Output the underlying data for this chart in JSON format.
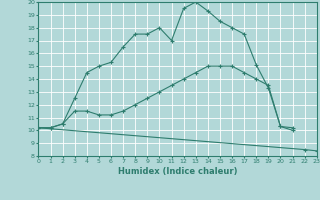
{
  "line1_x": [
    0,
    1,
    2,
    3,
    4,
    5,
    6,
    7,
    8,
    9,
    10,
    11,
    12,
    13,
    14,
    15,
    16,
    17,
    18,
    19,
    20,
    21
  ],
  "line1_y": [
    10.2,
    10.2,
    10.5,
    12.5,
    14.5,
    15.0,
    15.3,
    16.5,
    17.5,
    17.5,
    18.0,
    17.0,
    19.5,
    20.0,
    19.3,
    18.5,
    18.0,
    17.5,
    15.1,
    13.3,
    10.3,
    10.2
  ],
  "line2_x": [
    0,
    1,
    2,
    3,
    4,
    5,
    6,
    7,
    8,
    9,
    10,
    11,
    12,
    13,
    14,
    15,
    16,
    17,
    18,
    19,
    20,
    21,
    22
  ],
  "line2_y": [
    10.2,
    10.2,
    10.5,
    11.5,
    11.5,
    11.2,
    11.2,
    11.5,
    12.0,
    12.5,
    13.0,
    13.5,
    14.0,
    14.5,
    15.0,
    15.0,
    15.0,
    14.5,
    14.0,
    13.5,
    10.3,
    10.0,
    null
  ],
  "line3_x": [
    0,
    22,
    23
  ],
  "line3_y": [
    10.2,
    8.5,
    8.4
  ],
  "line_color": "#2e7d6e",
  "bg_color": "#b2d8d8",
  "grid_color": "#ffffff",
  "xlabel": "Humidex (Indice chaleur)",
  "xlim": [
    0,
    23
  ],
  "ylim": [
    8,
    20
  ],
  "xticks": [
    0,
    1,
    2,
    3,
    4,
    5,
    6,
    7,
    8,
    9,
    10,
    11,
    12,
    13,
    14,
    15,
    16,
    17,
    18,
    19,
    20,
    21,
    22,
    23
  ],
  "yticks": [
    8,
    9,
    10,
    11,
    12,
    13,
    14,
    15,
    16,
    17,
    18,
    19,
    20
  ],
  "marker": "+"
}
